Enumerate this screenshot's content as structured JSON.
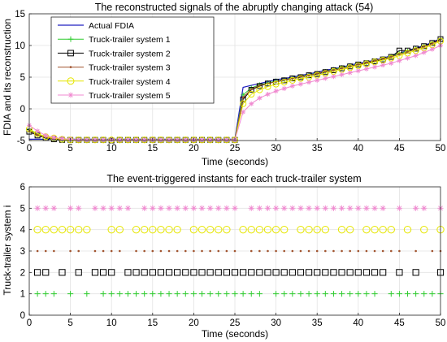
{
  "chart_data": [
    {
      "type": "line",
      "title": "The reconstructed signals of the abruptly changing attack (54)",
      "xlabel": "Time (seconds)",
      "ylabel": "FDIA and its reconstruction",
      "xlim": [
        0,
        50
      ],
      "ylim": [
        -5,
        15
      ],
      "xticks": [
        0,
        5,
        10,
        15,
        20,
        25,
        30,
        35,
        40,
        45,
        50
      ],
      "yticks": [
        -5,
        0,
        5,
        10,
        15
      ],
      "grid": true,
      "legend_position": "top-left",
      "x": [
        0,
        1,
        2,
        3,
        4,
        5,
        6,
        7,
        8,
        9,
        10,
        11,
        12,
        13,
        14,
        15,
        16,
        17,
        18,
        19,
        20,
        21,
        22,
        23,
        24,
        25,
        26,
        27,
        28,
        29,
        30,
        31,
        32,
        33,
        34,
        35,
        36,
        37,
        38,
        39,
        40,
        41,
        42,
        43,
        44,
        45,
        46,
        47,
        48,
        49,
        50
      ],
      "series": [
        {
          "name": "Actual FDIA",
          "color": "#2020c0",
          "marker": "none",
          "values": [
            -4.8,
            -4.8,
            -4.8,
            -4.8,
            -4.8,
            -4.8,
            -4.8,
            -4.8,
            -4.8,
            -4.8,
            -4.8,
            -4.8,
            -4.8,
            -4.8,
            -4.8,
            -4.8,
            -4.8,
            -4.8,
            -4.8,
            -4.8,
            -4.8,
            -4.8,
            -4.8,
            -4.8,
            -4.8,
            -4.8,
            3.4,
            3.7,
            4.0,
            4.3,
            4.6,
            4.8,
            5.0,
            5.3,
            5.5,
            5.8,
            6.1,
            6.3,
            6.6,
            6.9,
            7.2,
            7.4,
            7.7,
            8.0,
            8.4,
            8.8,
            9.2,
            9.6,
            10.0,
            10.5,
            11.1
          ]
        },
        {
          "name": "Truck-trailer system 1",
          "color": "#2ecc2e",
          "marker": "plus",
          "values": [
            -3.3,
            -4.0,
            -4.5,
            -4.7,
            -4.8,
            -4.9,
            -4.9,
            -4.9,
            -4.9,
            -4.9,
            -4.9,
            -4.9,
            -4.9,
            -4.9,
            -4.9,
            -4.9,
            -4.9,
            -4.9,
            -4.9,
            -4.9,
            -4.9,
            -4.9,
            -4.9,
            -4.9,
            -4.9,
            -4.9,
            2.2,
            3.3,
            3.8,
            4.1,
            4.4,
            4.6,
            4.9,
            5.1,
            5.4,
            5.6,
            5.9,
            6.2,
            6.5,
            6.8,
            7.0,
            7.3,
            7.6,
            7.9,
            8.3,
            8.7,
            9.1,
            9.5,
            9.9,
            10.4,
            11.0
          ]
        },
        {
          "name": "Truck-trailer system 2",
          "color": "#000000",
          "marker": "square",
          "values": [
            -3.6,
            -4.2,
            -4.6,
            -4.8,
            -4.9,
            -4.9,
            -4.9,
            -4.9,
            -4.9,
            -4.9,
            -5.0,
            -4.9,
            -4.9,
            -4.9,
            -4.9,
            -4.9,
            -4.9,
            -4.9,
            -4.9,
            -4.9,
            -4.9,
            -4.9,
            -4.9,
            -4.9,
            -4.9,
            -4.9,
            1.5,
            3.0,
            3.6,
            4.0,
            4.3,
            4.5,
            4.8,
            5.0,
            5.3,
            5.5,
            5.8,
            6.1,
            6.4,
            6.7,
            7.0,
            7.2,
            7.5,
            7.8,
            8.2,
            9.2,
            9.2,
            9.5,
            9.9,
            10.4,
            11.0
          ]
        },
        {
          "name": "Truck-trailer system 3",
          "color": "#a0522d",
          "marker": "dot",
          "values": [
            -3.5,
            -4.1,
            -4.5,
            -4.7,
            -4.8,
            -4.9,
            -4.9,
            -4.9,
            -4.9,
            -4.9,
            -4.9,
            -4.9,
            -4.9,
            -4.9,
            -4.9,
            -4.9,
            -4.9,
            -4.9,
            -4.9,
            -4.9,
            -4.9,
            -4.9,
            -4.9,
            -4.9,
            -4.9,
            -4.9,
            1.8,
            3.1,
            3.7,
            4.0,
            4.3,
            4.6,
            4.8,
            5.1,
            5.3,
            5.6,
            5.9,
            6.1,
            6.4,
            6.7,
            7.0,
            7.3,
            7.6,
            7.9,
            8.2,
            8.6,
            9.0,
            9.4,
            9.8,
            10.3,
            10.9
          ]
        },
        {
          "name": "Truck-trailer system 4",
          "color": "#e6e600",
          "marker": "circle",
          "values": [
            -3.2,
            -3.9,
            -4.4,
            -4.6,
            -4.8,
            -4.9,
            -4.9,
            -4.9,
            -4.9,
            -4.9,
            -4.9,
            -4.9,
            -4.9,
            -4.9,
            -4.9,
            -4.9,
            -4.9,
            -4.9,
            -4.9,
            -4.9,
            -4.9,
            -4.9,
            -4.9,
            -4.9,
            -4.9,
            -4.9,
            0.8,
            2.3,
            3.0,
            3.5,
            3.9,
            4.2,
            4.5,
            4.8,
            5.0,
            5.3,
            5.6,
            5.9,
            6.2,
            6.5,
            6.8,
            7.1,
            7.4,
            7.7,
            8.0,
            8.4,
            8.8,
            9.2,
            9.6,
            10.1,
            10.7
          ]
        },
        {
          "name": "Truck-trailer system 5",
          "color": "#f08ad0",
          "marker": "asterisk",
          "values": [
            -2.6,
            -3.5,
            -4.2,
            -4.5,
            -4.7,
            -4.8,
            -4.9,
            -4.9,
            -4.9,
            -4.9,
            -4.9,
            -4.9,
            -4.9,
            -4.9,
            -4.9,
            -4.9,
            -4.9,
            -4.9,
            -4.9,
            -4.9,
            -4.9,
            -4.9,
            -4.9,
            -4.9,
            -4.9,
            -4.9,
            -0.5,
            0.8,
            1.7,
            2.3,
            2.8,
            3.2,
            3.6,
            3.9,
            4.2,
            4.5,
            4.8,
            5.1,
            5.4,
            5.7,
            6.0,
            6.3,
            6.6,
            6.9,
            7.2,
            7.6,
            8.0,
            8.4,
            8.9,
            9.4,
            10.0
          ]
        }
      ]
    },
    {
      "type": "scatter",
      "title": "The event-triggered instants for each truck-trailer system",
      "xlabel": "Time (seconds)",
      "ylabel": "Truck-trailer system i",
      "xlim": [
        0,
        50
      ],
      "ylim": [
        0,
        6
      ],
      "xticks": [
        0,
        5,
        10,
        15,
        20,
        25,
        30,
        35,
        40,
        45,
        50
      ],
      "yticks": [
        0,
        1,
        2,
        3,
        4,
        5,
        6
      ],
      "grid": true,
      "series": [
        {
          "level": 1,
          "color": "#2ecc2e",
          "marker": "plus",
          "x": [
            1,
            2,
            3,
            5,
            7,
            9,
            10,
            11,
            12,
            13,
            14,
            15,
            16,
            17,
            18,
            19,
            20,
            21,
            22,
            23,
            24,
            25,
            26,
            27,
            28,
            30,
            31,
            32,
            33,
            34,
            35,
            36,
            37,
            38,
            39,
            40,
            41,
            42,
            44,
            45,
            46,
            47,
            48,
            49,
            50
          ]
        },
        {
          "level": 2,
          "color": "#000000",
          "marker": "square",
          "x": [
            1,
            2,
            4,
            6,
            8,
            9,
            10,
            12,
            13,
            14,
            15,
            16,
            17,
            18,
            19,
            20,
            21,
            22,
            23,
            24,
            25,
            26,
            27,
            28,
            29,
            30,
            31,
            32,
            33,
            34,
            35,
            36,
            37,
            38,
            39,
            40,
            41,
            42,
            43,
            45,
            47,
            50
          ]
        },
        {
          "level": 3,
          "color": "#a0522d",
          "marker": "dot",
          "x": [
            1,
            2,
            3,
            5,
            6,
            8,
            9,
            10,
            11,
            13,
            14,
            15,
            16,
            17,
            18,
            19,
            20,
            21,
            22,
            23,
            24,
            25,
            27,
            28,
            29,
            30,
            31,
            32,
            33,
            34,
            35,
            36,
            37,
            38,
            39,
            40,
            41,
            42,
            43,
            44,
            45,
            47,
            49,
            50
          ]
        },
        {
          "level": 4,
          "color": "#e6e600",
          "marker": "circle",
          "x": [
            1,
            2,
            3,
            4,
            5,
            6,
            7,
            10,
            11,
            13,
            14,
            15,
            16,
            17,
            18,
            20,
            21,
            22,
            23,
            24,
            26,
            27,
            28,
            29,
            30,
            31,
            33,
            34,
            35,
            36,
            38,
            39,
            41,
            42,
            43,
            44,
            46,
            48,
            50
          ]
        },
        {
          "level": 5,
          "color": "#f08ad0",
          "marker": "asterisk",
          "x": [
            1,
            2,
            3,
            5,
            6,
            8,
            9,
            10,
            11,
            12,
            14,
            15,
            16,
            17,
            18,
            19,
            20,
            21,
            22,
            23,
            24,
            25,
            27,
            28,
            29,
            30,
            31,
            32,
            33,
            34,
            35,
            36,
            37,
            38,
            39,
            40,
            41,
            42,
            43,
            45,
            47,
            48,
            50
          ]
        }
      ]
    }
  ]
}
